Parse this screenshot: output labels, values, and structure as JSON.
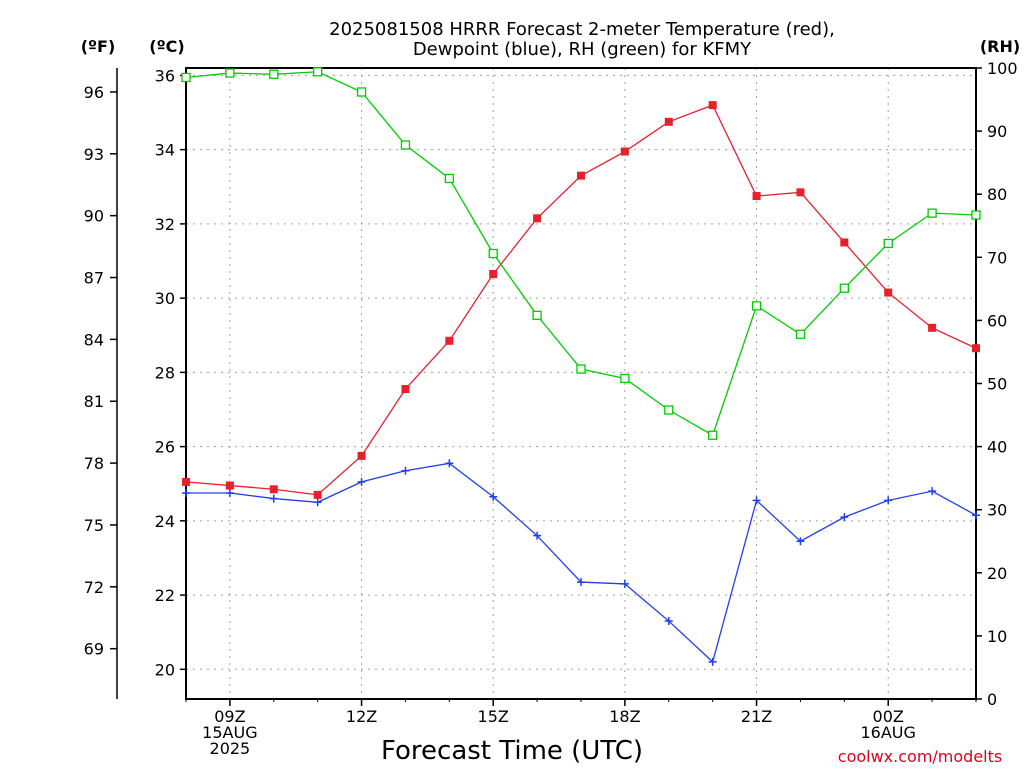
{
  "title_line1": "2025081508 HRRR Forecast 2-meter Temperature (red),",
  "title_line2": "Dewpoint (blue), RH (green) for KFMY",
  "unit_f": "(ºF)",
  "unit_c": "(ºC)",
  "unit_rh": "(RH)",
  "xlabel": "Forecast Time (UTC)",
  "credit": "coolwx.com/modelts",
  "colors": {
    "temperature": "#e8202a",
    "dewpoint": "#1f3ff0",
    "rh": "#00cc00",
    "grid": "#a0a0a0"
  },
  "chart_data": {
    "type": "line",
    "x": [
      "2025-08-15 08Z",
      "2025-08-15 09Z",
      "2025-08-15 10Z",
      "2025-08-15 11Z",
      "2025-08-15 12Z",
      "2025-08-15 13Z",
      "2025-08-15 14Z",
      "2025-08-15 15Z",
      "2025-08-15 16Z",
      "2025-08-15 17Z",
      "2025-08-15 18Z",
      "2025-08-15 19Z",
      "2025-08-15 20Z",
      "2025-08-15 21Z",
      "2025-08-15 22Z",
      "2025-08-15 23Z",
      "2025-08-16 00Z",
      "2025-08-16 01Z",
      "2025-08-16 02Z"
    ],
    "x_ticks": [
      {
        "x": "2025-08-15 09Z",
        "lines": [
          "09Z",
          "15AUG",
          "2025"
        ]
      },
      {
        "x": "2025-08-15 12Z",
        "lines": [
          "12Z"
        ]
      },
      {
        "x": "2025-08-15 15Z",
        "lines": [
          "15Z"
        ]
      },
      {
        "x": "2025-08-15 18Z",
        "lines": [
          "18Z"
        ]
      },
      {
        "x": "2025-08-15 21Z",
        "lines": [
          "21Z"
        ]
      },
      {
        "x": "2025-08-16 00Z",
        "lines": [
          "00Z",
          "16AUG"
        ]
      }
    ],
    "ylim_c": [
      19.2,
      36.2
    ],
    "ylim_rh": [
      0,
      100
    ],
    "y_ticks_c": [
      20,
      22,
      24,
      26,
      28,
      30,
      32,
      34,
      36
    ],
    "y_ticks_f": [
      69,
      72,
      75,
      78,
      81,
      84,
      87,
      90,
      93,
      96
    ],
    "y_ticks_rh": [
      0,
      10,
      20,
      30,
      40,
      50,
      60,
      70,
      80,
      90,
      100
    ],
    "grid": true,
    "series": [
      {
        "key": "temperature",
        "axis": "c",
        "marker": "filled-square",
        "values": [
          25.05,
          24.95,
          24.85,
          24.7,
          25.75,
          27.55,
          28.85,
          30.65,
          32.15,
          33.3,
          33.95,
          34.75,
          35.2,
          32.75,
          32.85,
          31.5,
          30.15,
          29.2,
          28.65
        ]
      },
      {
        "key": "dewpoint",
        "axis": "c",
        "marker": "plus",
        "values": [
          24.75,
          24.75,
          24.6,
          24.5,
          25.05,
          25.35,
          25.55,
          24.65,
          23.6,
          22.35,
          22.3,
          21.3,
          20.2,
          24.55,
          23.45,
          24.1,
          24.55,
          24.8,
          24.15
        ]
      },
      {
        "key": "rh",
        "axis": "rh",
        "marker": "open-square",
        "values": [
          98.5,
          99.2,
          99.0,
          99.4,
          96.2,
          87.8,
          82.5,
          70.6,
          60.8,
          52.3,
          50.8,
          45.8,
          41.8,
          62.3,
          57.8,
          65.1,
          72.2,
          77.0,
          76.7
        ]
      }
    ]
  }
}
